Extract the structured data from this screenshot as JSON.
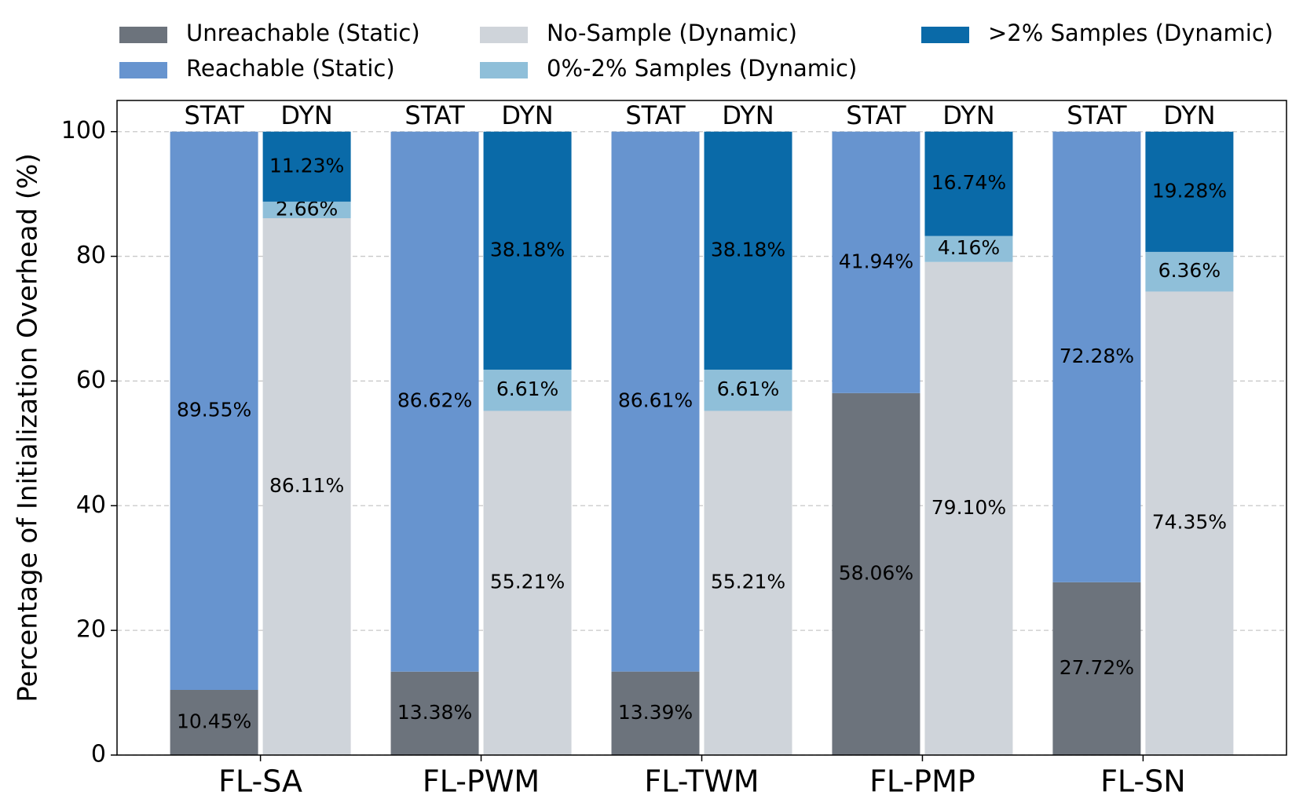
{
  "chart_data": {
    "type": "grouped_stacked_bar",
    "y_label": "Percentage of Initialization Overhead (%)",
    "categories": [
      "FL-SA",
      "FL-PWM",
      "FL-TWM",
      "FL-PMP",
      "FL-SN"
    ],
    "stacks": [
      "STAT",
      "DYN"
    ],
    "series": [
      {
        "name": "Unreachable (Static)",
        "color": "#6c737c",
        "stack": "STAT",
        "values": [
          10.45,
          13.38,
          13.39,
          58.06,
          27.72
        ],
        "value_labels": [
          "10.45%",
          "13.38%",
          "13.39%",
          "58.06%",
          "27.72%"
        ]
      },
      {
        "name": "Reachable (Static)",
        "color": "#6794cf",
        "stack": "STAT",
        "values": [
          89.55,
          86.62,
          86.61,
          41.94,
          72.28
        ],
        "value_labels": [
          "89.55%",
          "86.62%",
          "86.61%",
          "41.94%",
          "72.28%"
        ]
      },
      {
        "name": "No-Sample (Dynamic)",
        "color": "#cfd4da",
        "stack": "DYN",
        "values": [
          86.11,
          55.21,
          55.21,
          79.1,
          74.35
        ],
        "value_labels": [
          "86.11%",
          "55.21%",
          "55.21%",
          "79.10%",
          "74.35%"
        ]
      },
      {
        "name": "0%-2% Samples (Dynamic)",
        "color": "#8fbfd9",
        "stack": "DYN",
        "values": [
          2.66,
          6.61,
          6.61,
          4.16,
          6.36
        ],
        "value_labels": [
          "2.66%",
          "6.61%",
          "6.61%",
          "4.16%",
          "6.36%"
        ]
      },
      {
        "name": ">2% Samples (Dynamic)",
        "color": "#0a6aa8",
        "stack": "DYN",
        "values": [
          11.23,
          38.18,
          38.18,
          16.74,
          19.28
        ],
        "value_labels": [
          "11.23%",
          "38.18%",
          "38.18%",
          "16.74%",
          "19.28%"
        ]
      }
    ],
    "ylim": [
      0,
      105
    ],
    "yticks": [
      0,
      20,
      40,
      60,
      80,
      100
    ],
    "grid": true,
    "legend": "top"
  }
}
